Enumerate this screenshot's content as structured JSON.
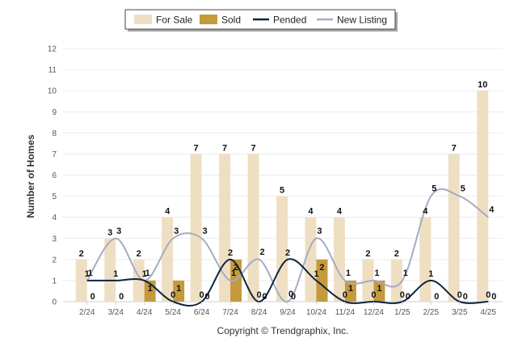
{
  "chart_data": {
    "type": "bar",
    "ylabel": "Number of Homes",
    "ylim": [
      0,
      12
    ],
    "yticks": [
      0,
      1,
      2,
      3,
      4,
      5,
      6,
      7,
      8,
      9,
      10,
      11,
      12
    ],
    "grid": true,
    "legend_placement": "top-center",
    "categories": [
      "2/24",
      "3/24",
      "4/24",
      "5/24",
      "6/24",
      "7/24",
      "8/24",
      "9/24",
      "10/24",
      "11/24",
      "12/24",
      "1/25",
      "2/25",
      "3/25",
      "4/25"
    ],
    "series": [
      {
        "name": "For Sale",
        "kind": "bar",
        "color": "#efdfc2",
        "values": [
          2,
          3,
          2,
          4,
          7,
          7,
          7,
          5,
          4,
          4,
          2,
          2,
          4,
          7,
          10
        ]
      },
      {
        "name": "Sold",
        "kind": "bar",
        "color": "#c49a3c",
        "values": [
          0,
          0,
          1,
          1,
          0,
          2,
          0,
          0,
          2,
          1,
          1,
          0,
          0,
          0,
          0
        ]
      },
      {
        "name": "Pended",
        "kind": "line",
        "color": "#0d2440",
        "values": [
          1,
          1,
          1,
          0,
          0,
          2,
          0,
          2,
          1,
          0,
          0,
          0,
          1,
          0,
          0
        ]
      },
      {
        "name": "New Listing",
        "kind": "line",
        "color": "#a4abc4",
        "values": [
          1,
          3,
          1,
          3,
          3,
          1,
          2,
          0,
          3,
          1,
          1,
          1,
          5,
          5,
          4
        ]
      }
    ],
    "credit": "Copyright © Trendgraphix, Inc."
  }
}
